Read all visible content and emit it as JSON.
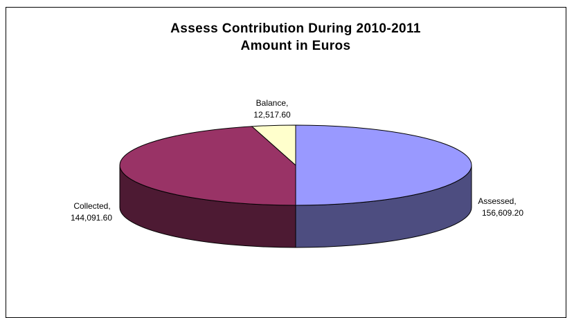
{
  "chart_data": {
    "type": "pie",
    "title": "Assess Contribution During 2010-2011",
    "subtitle": "Amount in Euros",
    "three_d": true,
    "legend": "none",
    "slices": [
      {
        "name": "Assessed,",
        "value_label": "156,609.20",
        "value": 156609.2,
        "color": "#9999ff",
        "side_color": "#4d4d80"
      },
      {
        "name": "Collected,",
        "value_label": "144,091.60",
        "value": 144091.6,
        "color": "#993366",
        "side_color": "#4d1a33"
      },
      {
        "name": "Balance,",
        "value_label": "12,517.60",
        "value": 12517.6,
        "color": "#ffffcc",
        "side_color": "#808066"
      }
    ]
  }
}
